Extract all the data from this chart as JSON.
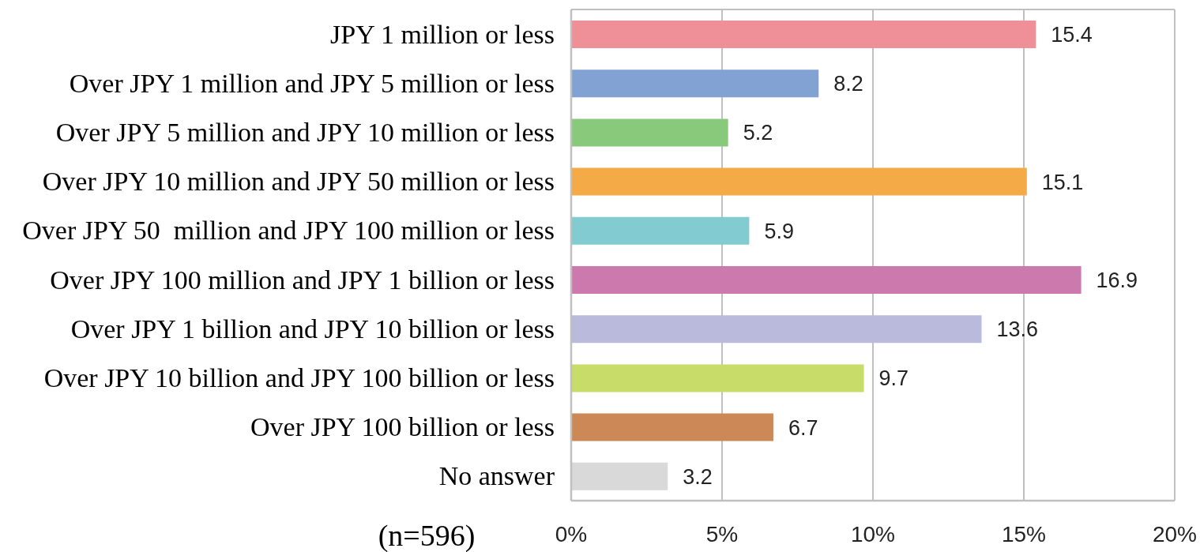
{
  "chart_data": {
    "type": "bar",
    "orientation": "horizontal",
    "categories": [
      "JPY 1 million or less",
      "Over JPY 1 million and JPY 5 million or less",
      "Over JPY 5 million and JPY 10 million or less",
      "Over JPY 10 million and JPY 50 million or less",
      "Over JPY 50  million and JPY 100 million or less",
      "Over JPY 100 million and JPY 1 billion or less",
      "Over JPY 1 billion and JPY 10 billion or less",
      "Over JPY 10 billion and JPY 100 billion or less",
      "Over JPY 100 billion or less",
      "No answer"
    ],
    "values": [
      15.4,
      8.2,
      5.2,
      15.1,
      5.9,
      16.9,
      13.6,
      9.7,
      6.7,
      3.2
    ],
    "colors": [
      "#ef8f98",
      "#83a2d4",
      "#88c97c",
      "#f5aa48",
      "#82cbd1",
      "#cc7aae",
      "#babadd",
      "#c8dc69",
      "#cd8858",
      "#d9d9d9"
    ],
    "xlim": [
      0,
      20
    ],
    "xticks": [
      {
        "value": 0,
        "label": "0%"
      },
      {
        "value": 5,
        "label": "5%"
      },
      {
        "value": 10,
        "label": "10%"
      },
      {
        "value": 15,
        "label": "15%"
      },
      {
        "value": 20,
        "label": "20%"
      }
    ],
    "grid": "x",
    "data_labels": true,
    "annotations": [
      "(n=596)"
    ]
  }
}
